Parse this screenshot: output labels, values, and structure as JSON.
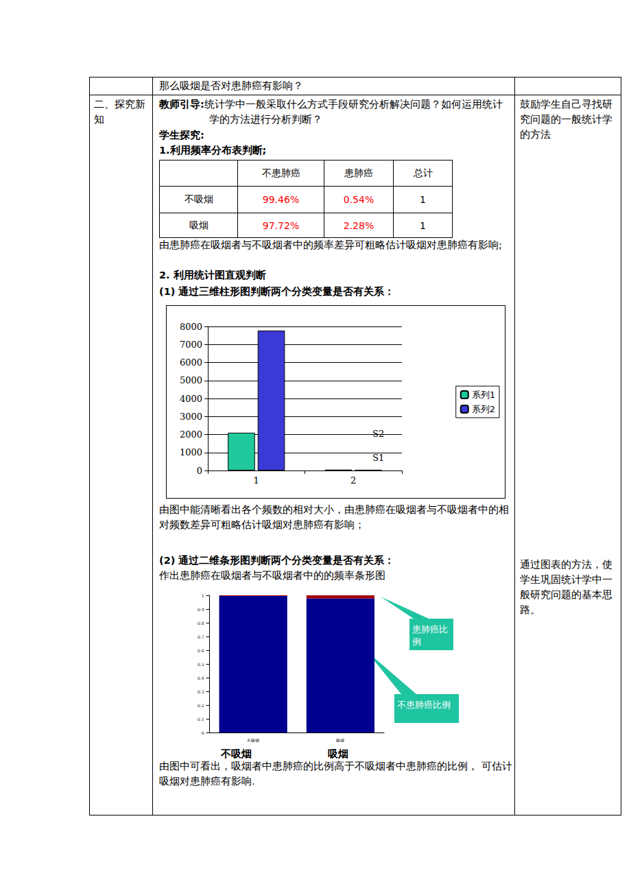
{
  "document": {
    "row1": "那么吸烟是否对患肺癌有影响？",
    "section": "二、探究新知",
    "notes": [
      "鼓励学生自己寻找研究问题的一般统计学的方法",
      "通过图表的方法，使学生巩固统计学中一般研究问题的基本思路。"
    ],
    "teacher_label": "教师引导:",
    "teacher_text": "统计学中一般采取什么方式手段研究分析解决问题？如何运用统计学的方法进行分析判断？",
    "student_label": "学生探究:",
    "step1": "1.利用频率分布表判断;",
    "table": {
      "header": [
        "",
        "不患肺癌",
        "患肺癌",
        "总计"
      ],
      "rows": [
        [
          "不吸烟",
          "99.46%",
          "0.54%",
          "1"
        ],
        [
          "吸烟",
          "97.72%",
          "2.28%",
          "1"
        ]
      ]
    },
    "step1_note": "由患肺癌在吸烟者与不吸烟者中的频率差异可粗略估计吸烟对患肺癌有影响;",
    "step2": "2.  利用统计图直观判断",
    "step2_1": "(1)    通过三维柱形图判断两个分类变量是否有关系：",
    "chart1_note": "由图中能清晰看出各个频数的相对大小，由患肺癌在吸烟者与不吸烟者中的相对频数差异可粗略估计吸烟对患肺癌有影响；",
    "step2_2": "(2)    通过二维条形图判断两个分类变量是否有关系：",
    "step2_2_intro": "作出患肺癌在吸烟者与不吸烟者中的的频率条形图",
    "chart2_captions": [
      "不吸烟",
      "吸烟"
    ],
    "chart2_note": "由图中可看出，吸烟者中患肺癌的比例高于不吸烟者中患肺癌的比例， 可估计吸烟对患肺癌有影响."
  },
  "chart_data": [
    {
      "type": "bar",
      "categories": [
        "1",
        "2"
      ],
      "series": [
        {
          "name": "系列1",
          "color": "#1fc99c",
          "values": [
            2099,
            49
          ]
        },
        {
          "name": "系列2",
          "color": "#3a3ad6",
          "values": [
            7775,
            42
          ]
        }
      ],
      "ylim": [
        0,
        8000
      ],
      "yticks": [
        0,
        1000,
        2000,
        3000,
        4000,
        5000,
        6000,
        7000,
        8000
      ],
      "grid": true,
      "legend": "right",
      "annotations": [
        "S2",
        "S1"
      ]
    },
    {
      "type": "bar",
      "stacked": true,
      "categories": [
        "不吸烟",
        "吸烟"
      ],
      "series": [
        {
          "name": "不患肺癌比例",
          "color": "#000090",
          "values": [
            0.9946,
            0.9772
          ]
        },
        {
          "name": "患肺癌比例",
          "color": "#a00000",
          "values": [
            0.0054,
            0.0228
          ]
        }
      ],
      "ylim": [
        0,
        1
      ],
      "yticks": [
        0,
        0.1,
        0.2,
        0.3,
        0.4,
        0.5,
        0.6,
        0.7,
        0.8,
        0.9,
        1
      ],
      "grid": false
    }
  ]
}
